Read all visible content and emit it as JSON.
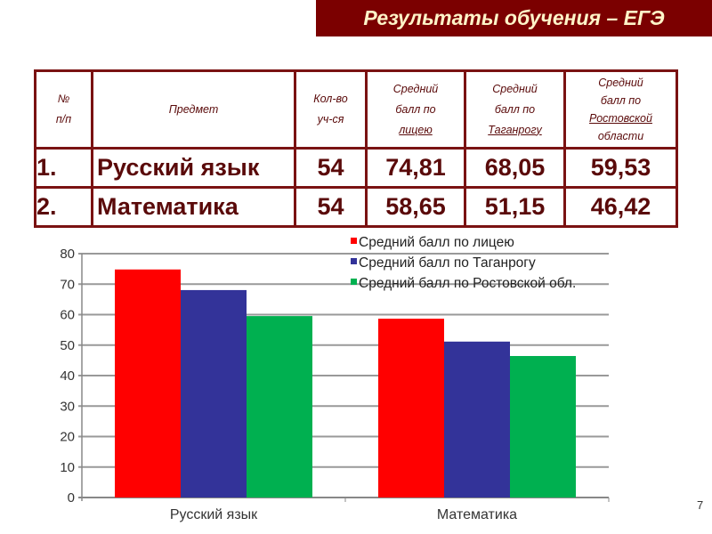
{
  "title": "Результаты обучения – ЕГЭ",
  "table": {
    "headers": [
      "№ п/п",
      "Предмет",
      "Кол-во уч-ся",
      "Средний балл по лицею",
      "Средний балл по Таганрогу",
      "Средний балл по Ростовской области"
    ],
    "header_lines": {
      "num": [
        "№",
        "п/п"
      ],
      "subject": "Предмет",
      "count": [
        "Кол-во",
        "уч-ся"
      ],
      "lyceum": [
        "Средний",
        "балл по",
        "лицею"
      ],
      "city": [
        "Средний",
        "балл по",
        "Таганрогу"
      ],
      "region": [
        "Средний",
        "балл по",
        "Ростовской",
        "области"
      ]
    },
    "rows": [
      {
        "num": "1.",
        "subject": "Русский язык",
        "count": "54",
        "lyceum": "74,81",
        "city": "68,05",
        "region": "59,53"
      },
      {
        "num": "2.",
        "subject": "Математика",
        "count": "54",
        "lyceum": "58,65",
        "city": "51,15",
        "region": "46,42"
      }
    ]
  },
  "chart_data": {
    "type": "bar",
    "categories": [
      "Русский язык",
      "Математика"
    ],
    "series": [
      {
        "name": "Средний балл по лицею",
        "values": [
          74.81,
          58.65
        ],
        "color": "#ff0000"
      },
      {
        "name": "Средний балл по Таганрогу",
        "values": [
          68.05,
          51.15
        ],
        "color": "#333399"
      },
      {
        "name": "Средний балл по Ростовской обл.",
        "values": [
          59.53,
          46.42
        ],
        "color": "#00b050"
      }
    ],
    "ylim": [
      0,
      80
    ],
    "yticks": [
      0,
      10,
      20,
      30,
      40,
      50,
      60,
      70,
      80
    ],
    "grid": true,
    "legend": "top-right"
  },
  "page_number": "7"
}
